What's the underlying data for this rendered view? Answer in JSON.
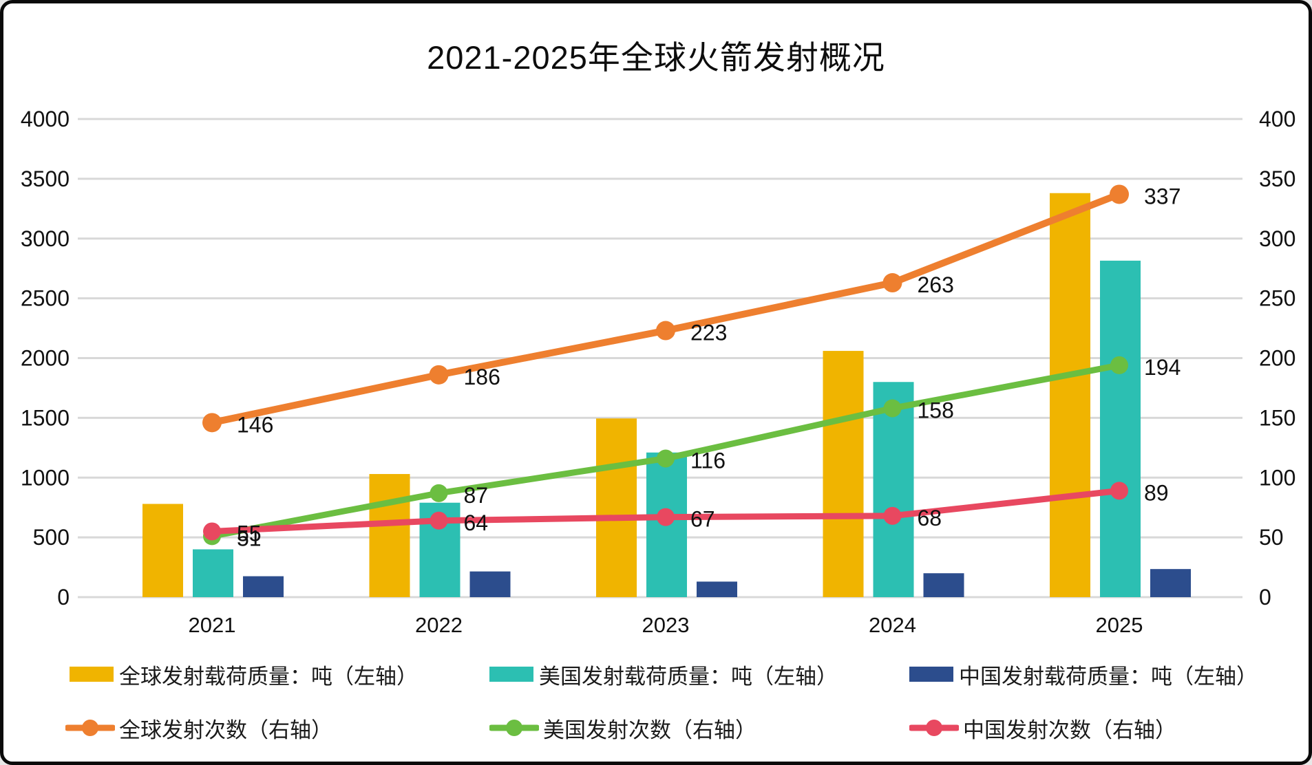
{
  "title": "2021-2025年全球火箭发射概况",
  "chart_data": {
    "type": "combo-bar-line",
    "title": "2021-2025年全球火箭发射概况",
    "categories": [
      "2021",
      "2022",
      "2023",
      "2024",
      "2025"
    ],
    "left_axis": {
      "label": "",
      "min": 0,
      "max": 4000,
      "step": 500
    },
    "right_axis": {
      "label": "",
      "min": 0,
      "max": 400,
      "step": 50
    },
    "grid": true,
    "legend_position": "bottom",
    "bar_series": [
      {
        "name": "全球发射载荷质量：吨（左轴）",
        "color": "#F0B400",
        "axis": "left",
        "values": [
          780,
          1030,
          1495,
          2060,
          3380
        ]
      },
      {
        "name": "美国发射载荷质量：吨（左轴）",
        "color": "#2CBFB2",
        "axis": "left",
        "values": [
          400,
          790,
          1210,
          1800,
          2815
        ]
      },
      {
        "name": "中国发射载荷质量：吨（左轴）",
        "color": "#2C4D8D",
        "axis": "left",
        "values": [
          175,
          215,
          130,
          200,
          235
        ]
      }
    ],
    "line_series": [
      {
        "name": "全球发射次数（右轴）",
        "color": "#EE7F2F",
        "axis": "right",
        "values": [
          146,
          186,
          223,
          263,
          337
        ],
        "labels": [
          "146",
          "186",
          "223",
          "263",
          "337"
        ]
      },
      {
        "name": "美国发射次数（右轴）",
        "color": "#6BBE41",
        "axis": "right",
        "values": [
          51,
          87,
          116,
          158,
          194
        ],
        "labels": [
          "51",
          "87",
          "116",
          "158",
          "194"
        ]
      },
      {
        "name": "中国发射次数（右轴）",
        "color": "#E84860",
        "axis": "right",
        "values": [
          55,
          64,
          67,
          68,
          89
        ],
        "labels": [
          "55",
          "64",
          "67",
          "68",
          "89"
        ]
      }
    ]
  },
  "colors": {
    "grid": "#D8D8D8",
    "text": "#1A1A1A",
    "background": "#FFFFFF",
    "border": "#0A0A0A"
  }
}
